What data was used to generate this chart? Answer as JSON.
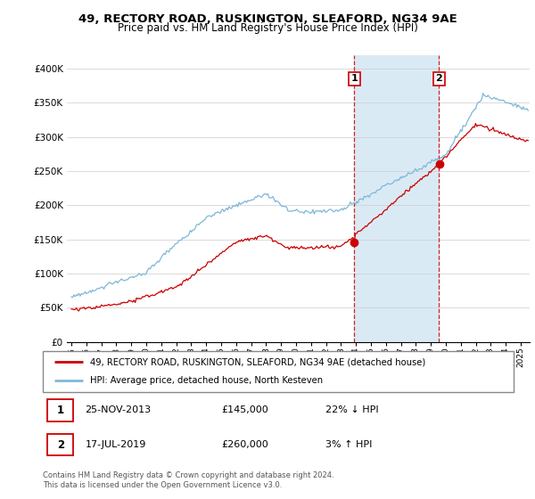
{
  "title1": "49, RECTORY ROAD, RUSKINGTON, SLEAFORD, NG34 9AE",
  "title2": "Price paid vs. HM Land Registry's House Price Index (HPI)",
  "ylabel_ticks": [
    "£0",
    "£50K",
    "£100K",
    "£150K",
    "£200K",
    "£250K",
    "£300K",
    "£350K",
    "£400K"
  ],
  "ytick_values": [
    0,
    50000,
    100000,
    150000,
    200000,
    250000,
    300000,
    350000,
    400000
  ],
  "ylim": [
    0,
    420000
  ],
  "hpi_color": "#7db8d8",
  "price_color": "#cc0000",
  "shade_color": "#daeaf5",
  "marker1_year": 2013.9,
  "marker1_price": 145000,
  "marker2_year": 2019.54,
  "marker2_price": 260000,
  "legend_line1": "49, RECTORY ROAD, RUSKINGTON, SLEAFORD, NG34 9AE (detached house)",
  "legend_line2": "HPI: Average price, detached house, North Kesteven",
  "table_row1_num": "1",
  "table_row1_date": "25-NOV-2013",
  "table_row1_price": "£145,000",
  "table_row1_hpi": "22% ↓ HPI",
  "table_row2_num": "2",
  "table_row2_date": "17-JUL-2019",
  "table_row2_price": "£260,000",
  "table_row2_hpi": "3% ↑ HPI",
  "footer": "Contains HM Land Registry data © Crown copyright and database right 2024.\nThis data is licensed under the Open Government Licence v3.0."
}
